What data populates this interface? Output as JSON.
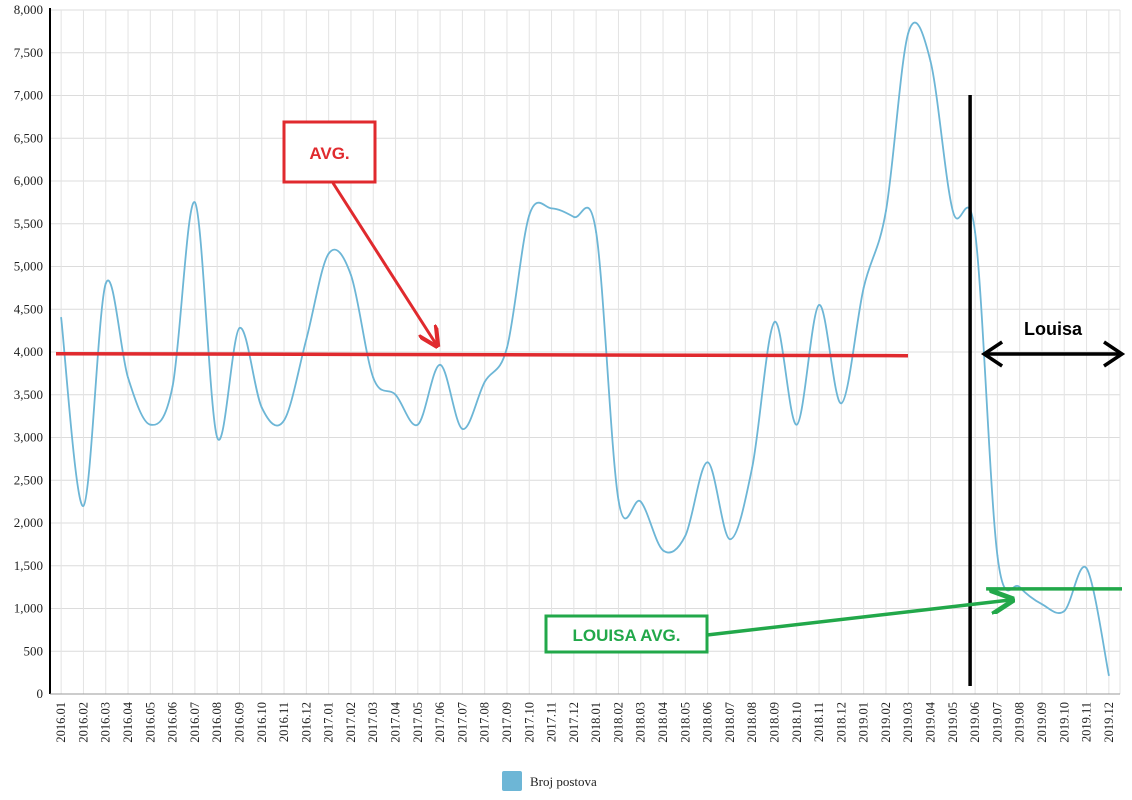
{
  "chart_data": {
    "type": "line",
    "ylim": [
      0,
      8000
    ],
    "yticks": [
      "0",
      "500",
      "1,000",
      "1,500",
      "2,000",
      "2,500",
      "3,000",
      "3,500",
      "4,000",
      "4,500",
      "5,000",
      "5,500",
      "6,000",
      "6,500",
      "7,000",
      "7,500",
      "8,000"
    ],
    "x_ticks": [
      "2016.01",
      "2016.02",
      "2016.03",
      "2016.04",
      "2016.05",
      "2016.06",
      "2016.07",
      "2016.08",
      "2016.09",
      "2016.10",
      "2016.11",
      "2016.12",
      "2017.01",
      "2017.02",
      "2017.03",
      "2017.04",
      "2017.05",
      "2017.06",
      "2017.07",
      "2017.08",
      "2017.09",
      "2017.10",
      "2017.11",
      "2017.12",
      "2018.01",
      "2018.02",
      "2018.03",
      "2018.04",
      "2018.05",
      "2018.06",
      "2018.07",
      "2018.08",
      "2018.09",
      "2018.10",
      "2018.11",
      "2018.12",
      "2019.01",
      "2019.02",
      "2019.03",
      "2019.04",
      "2019.05",
      "2019.06",
      "2019.07",
      "2019.08",
      "2019.09",
      "2019.10",
      "2019.11",
      "2019.12"
    ],
    "grid": true,
    "legend_position": "bottom-center",
    "series": [
      {
        "name": "Broj postova",
        "color": "#6db6d6",
        "values": [
          4400,
          2200,
          4800,
          3700,
          3150,
          3600,
          5750,
          3000,
          4280,
          3350,
          3200,
          4150,
          5150,
          4900,
          3700,
          3500,
          3150,
          3850,
          3100,
          3650,
          4050,
          5600,
          5680,
          5580,
          5400,
          2270,
          2250,
          1680,
          1850,
          2710,
          1810,
          2650,
          4350,
          3150,
          4550,
          3400,
          4750,
          5650,
          7730,
          7400,
          5650,
          5400,
          1620,
          1250,
          1050,
          970,
          1470,
          220
        ]
      }
    ],
    "annotations": {
      "avg_label": "AVG.",
      "avg_value": 3980,
      "avg_color": "#e02a2e",
      "louisa_label": "Louisa",
      "louisa_avg_label": "LOUISA AVG.",
      "louisa_avg_value": 1230,
      "louisa_avg_color": "#22a84a",
      "divider_at": "2019.06",
      "divider_color": "#000000"
    }
  }
}
